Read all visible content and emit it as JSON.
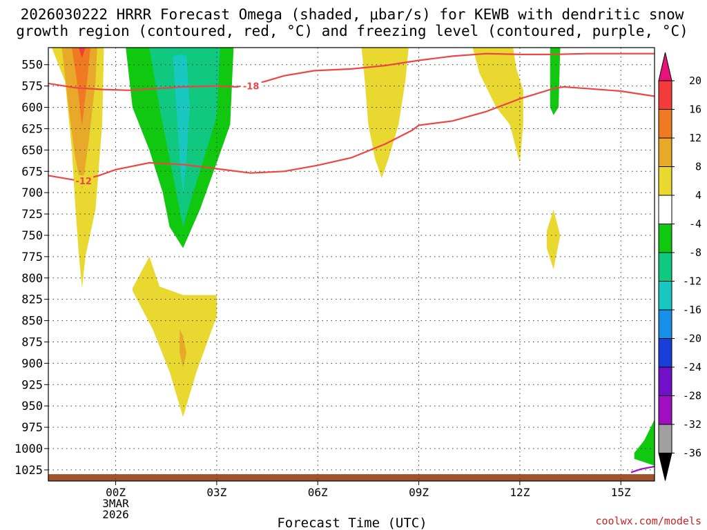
{
  "chart_data": {
    "type": "heatmap",
    "title_line1": "2026030222 HRRR Forecast Omega (shaded, μbar/s) for KEWB with dendritic snow",
    "title_line2": "growth region (contoured, red, °C) and freezing level (contoured, purple, °C)",
    "xlabel": "Forecast Time (UTC)",
    "credit": "coolwx.com/models",
    "x_hours_range": [
      -2,
      16
    ],
    "y_pressure_range": [
      530,
      1038
    ],
    "y_ticks": [
      550,
      575,
      600,
      625,
      650,
      675,
      700,
      725,
      750,
      775,
      800,
      825,
      850,
      875,
      900,
      925,
      950,
      975,
      1000,
      1025
    ],
    "x_ticks": [
      {
        "hour": 0,
        "label": "00Z",
        "sub1": "3MAR",
        "sub2": "2026"
      },
      {
        "hour": 3,
        "label": "03Z"
      },
      {
        "hour": 6,
        "label": "06Z"
      },
      {
        "hour": 9,
        "label": "09Z"
      },
      {
        "hour": 12,
        "label": "12Z"
      },
      {
        "hour": 15,
        "label": "15Z"
      }
    ],
    "grid": true,
    "colorbar": {
      "labels": [
        "20",
        "16",
        "12",
        "8",
        "4",
        "-4",
        "-8",
        "-12",
        "-16",
        "-20",
        "-24",
        "-28",
        "-32",
        "-36"
      ],
      "colors": [
        "#e8127a",
        "#f23c3c",
        "#f07a22",
        "#e8a82a",
        "#e8d830",
        "#ffffff",
        "#10c810",
        "#10c880",
        "#18c8c0",
        "#1890e8",
        "#1840d8",
        "#7010c8",
        "#a010c0",
        "#a0a0a0",
        "#000000"
      ]
    },
    "contours": {
      "dgz_minus18": {
        "label": "-18",
        "color": "#ef4444",
        "points": [
          [
            -2.0,
            572
          ],
          [
            -1.2,
            577
          ],
          [
            -0.4,
            579
          ],
          [
            0.4,
            580
          ],
          [
            1.2,
            578
          ],
          [
            2.0,
            576
          ],
          [
            3.0,
            575
          ],
          [
            3.6,
            576
          ],
          [
            4.4,
            570
          ],
          [
            5.0,
            563
          ],
          [
            5.9,
            557
          ],
          [
            7.0,
            555
          ],
          [
            8.0,
            551
          ],
          [
            9.0,
            545
          ],
          [
            10.0,
            540
          ],
          [
            11.0,
            537
          ],
          [
            12.0,
            538
          ],
          [
            13.0,
            538
          ],
          [
            14.0,
            537
          ],
          [
            15.0,
            537
          ],
          [
            16.0,
            537
          ]
        ]
      },
      "dgz_minus12": {
        "label": "-12",
        "color": "#ef4444",
        "points": [
          [
            -2.0,
            680
          ],
          [
            -1.1,
            686
          ],
          [
            -0.5,
            680
          ],
          [
            0.0,
            673
          ],
          [
            1.0,
            665
          ],
          [
            2.0,
            667
          ],
          [
            3.0,
            672
          ],
          [
            4.0,
            677
          ],
          [
            5.0,
            675
          ],
          [
            6.0,
            668
          ],
          [
            7.0,
            659
          ],
          [
            8.0,
            643
          ],
          [
            8.8,
            627
          ],
          [
            9.0,
            621
          ],
          [
            10.0,
            616
          ],
          [
            11.0,
            605
          ],
          [
            12.0,
            590
          ],
          [
            13.0,
            578
          ],
          [
            13.3,
            576
          ],
          [
            14.0,
            578
          ],
          [
            15.0,
            581
          ],
          [
            16.0,
            587
          ]
        ]
      },
      "freezing_level": {
        "label": "",
        "color": "#a010c0",
        "points": [
          [
            15.3,
            1028
          ],
          [
            15.6,
            1024
          ],
          [
            16.0,
            1021
          ]
        ]
      }
    },
    "omega_regions": [
      {
        "color": "#e8d830",
        "points": [
          [
            -1.9,
            530
          ],
          [
            -1.5,
            570
          ],
          [
            -1.3,
            650
          ],
          [
            -1.2,
            715
          ],
          [
            -1.1,
            770
          ],
          [
            -1.0,
            812
          ],
          [
            -0.9,
            775
          ],
          [
            -0.6,
            720
          ],
          [
            -0.4,
            620
          ],
          [
            -0.35,
            530
          ]
        ]
      },
      {
        "color": "#e8a82a",
        "points": [
          [
            -1.6,
            530
          ],
          [
            -1.4,
            600
          ],
          [
            -1.2,
            660
          ],
          [
            -1.0,
            696
          ],
          [
            -0.8,
            640
          ],
          [
            -0.6,
            570
          ],
          [
            -0.55,
            530
          ]
        ]
      },
      {
        "color": "#f07a22",
        "points": [
          [
            -1.3,
            530
          ],
          [
            -1.15,
            570
          ],
          [
            -1.0,
            622
          ],
          [
            -0.85,
            570
          ],
          [
            -0.75,
            530
          ]
        ]
      },
      {
        "color": "#f23c3c",
        "points": [
          [
            -1.1,
            530
          ],
          [
            -1.0,
            542
          ],
          [
            -0.9,
            530
          ]
        ]
      },
      {
        "color": "#10c810",
        "points": [
          [
            0.3,
            530
          ],
          [
            0.5,
            600
          ],
          [
            1.0,
            650
          ],
          [
            1.4,
            700
          ],
          [
            1.6,
            740
          ],
          [
            2.0,
            765
          ],
          [
            2.5,
            720
          ],
          [
            3.0,
            665
          ],
          [
            3.4,
            620
          ],
          [
            3.5,
            530
          ]
        ]
      },
      {
        "color": "#10c880",
        "points": [
          [
            1.0,
            530
          ],
          [
            1.3,
            600
          ],
          [
            1.5,
            640
          ],
          [
            1.8,
            700
          ],
          [
            2.0,
            740
          ],
          [
            2.3,
            700
          ],
          [
            2.7,
            650
          ],
          [
            3.0,
            610
          ],
          [
            3.1,
            530
          ]
        ]
      },
      {
        "color": "#18c8c0",
        "points": [
          [
            1.7,
            540
          ],
          [
            1.8,
            600
          ],
          [
            1.9,
            660
          ],
          [
            2.0,
            700
          ],
          [
            2.1,
            660
          ],
          [
            2.2,
            600
          ],
          [
            2.1,
            540
          ],
          [
            1.95,
            538
          ]
        ]
      },
      {
        "color": "#e8d830",
        "points": [
          [
            0.5,
            812
          ],
          [
            1.0,
            775
          ],
          [
            1.3,
            810
          ],
          [
            2.0,
            820
          ],
          [
            3.0,
            820
          ],
          [
            3.0,
            845
          ],
          [
            2.4,
            910
          ],
          [
            2.0,
            963
          ],
          [
            1.6,
            910
          ],
          [
            1.1,
            860
          ],
          [
            0.5,
            815
          ]
        ]
      },
      {
        "color": "#e8a82a",
        "points": [
          [
            1.9,
            860
          ],
          [
            2.0,
            868
          ],
          [
            2.1,
            888
          ],
          [
            2.0,
            905
          ],
          [
            1.9,
            888
          ]
        ]
      },
      {
        "color": "#e8d830",
        "points": [
          [
            7.3,
            530
          ],
          [
            7.4,
            570
          ],
          [
            7.5,
            620
          ],
          [
            7.7,
            660
          ],
          [
            7.9,
            683
          ],
          [
            8.1,
            660
          ],
          [
            8.4,
            620
          ],
          [
            8.6,
            570
          ],
          [
            8.7,
            530
          ]
        ]
      },
      {
        "color": "#e8d830",
        "points": [
          [
            10.6,
            530
          ],
          [
            10.8,
            560
          ],
          [
            11.3,
            600
          ],
          [
            11.7,
            620
          ],
          [
            11.9,
            650
          ],
          [
            12.0,
            665
          ],
          [
            12.1,
            620
          ],
          [
            12.1,
            580
          ],
          [
            11.9,
            555
          ],
          [
            11.8,
            530
          ]
        ]
      },
      {
        "color": "#10c810",
        "points": [
          [
            12.9,
            530
          ],
          [
            12.9,
            600
          ],
          [
            13.0,
            609
          ],
          [
            13.15,
            600
          ],
          [
            13.2,
            530
          ]
        ]
      },
      {
        "color": "#e8d830",
        "points": [
          [
            12.8,
            745
          ],
          [
            13.0,
            720
          ],
          [
            13.2,
            750
          ],
          [
            13.1,
            770
          ],
          [
            13.0,
            790
          ],
          [
            12.8,
            765
          ]
        ]
      },
      {
        "color": "#10c810",
        "points": [
          [
            16.0,
            966
          ],
          [
            15.7,
            990
          ],
          [
            15.4,
            1005
          ],
          [
            15.4,
            1012
          ],
          [
            16.0,
            1020
          ]
        ]
      }
    ],
    "surface_band": {
      "color": "#a0522d",
      "top_pressure": 1030
    }
  }
}
